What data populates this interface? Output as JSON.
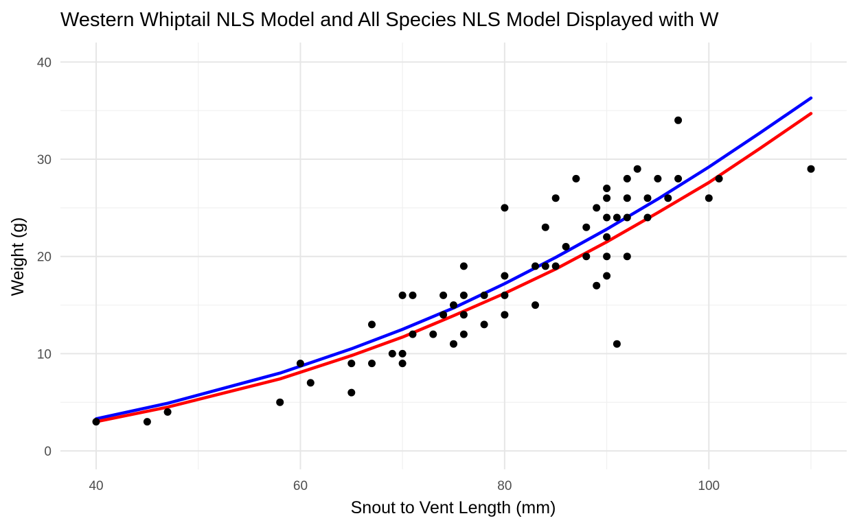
{
  "chart_data": {
    "type": "scatter",
    "title": "Western Whiptail NLS Model and All Species NLS Model Displayed with W",
    "xlabel": "Snout to Vent Length (mm)",
    "ylabel": "Weight (g)",
    "xlim": [
      36.5,
      113.5
    ],
    "ylim": [
      -1.9,
      42
    ],
    "x_ticks": [
      40,
      60,
      80,
      100
    ],
    "x_minor_ticks": [
      50,
      70,
      90,
      110
    ],
    "y_ticks": [
      0,
      10,
      20,
      30,
      40
    ],
    "y_minor_ticks": [
      5,
      15,
      25,
      35
    ],
    "grid": true,
    "legend": "none",
    "colors": {
      "points": "#000000",
      "blue_line": "#0000ff",
      "red_line": "#ff0000"
    },
    "points": [
      [
        40,
        3
      ],
      [
        45,
        3
      ],
      [
        47,
        4
      ],
      [
        58,
        5
      ],
      [
        60,
        9
      ],
      [
        61,
        7
      ],
      [
        65,
        9
      ],
      [
        65,
        6
      ],
      [
        67,
        13
      ],
      [
        67,
        9
      ],
      [
        69,
        10
      ],
      [
        70,
        16
      ],
      [
        70,
        10
      ],
      [
        70,
        9
      ],
      [
        71,
        16
      ],
      [
        71,
        12
      ],
      [
        73,
        12
      ],
      [
        74,
        16
      ],
      [
        74,
        14
      ],
      [
        75,
        15
      ],
      [
        75,
        11
      ],
      [
        76,
        19
      ],
      [
        76,
        16
      ],
      [
        76,
        14
      ],
      [
        76,
        12
      ],
      [
        78,
        16
      ],
      [
        78,
        13
      ],
      [
        80,
        25
      ],
      [
        80,
        18
      ],
      [
        80,
        16
      ],
      [
        80,
        14
      ],
      [
        83,
        19
      ],
      [
        83,
        15
      ],
      [
        84,
        23
      ],
      [
        84,
        19
      ],
      [
        85,
        26
      ],
      [
        85,
        19
      ],
      [
        86,
        21
      ],
      [
        87,
        28
      ],
      [
        88,
        23
      ],
      [
        88,
        20
      ],
      [
        89,
        25
      ],
      [
        89,
        17
      ],
      [
        90,
        27
      ],
      [
        90,
        26
      ],
      [
        90,
        24
      ],
      [
        90,
        22
      ],
      [
        90,
        20
      ],
      [
        90,
        18
      ],
      [
        91,
        24
      ],
      [
        91,
        11
      ],
      [
        92,
        28
      ],
      [
        92,
        26
      ],
      [
        92,
        24
      ],
      [
        92,
        20
      ],
      [
        93,
        29
      ],
      [
        94,
        26
      ],
      [
        94,
        24
      ],
      [
        95,
        28
      ],
      [
        96,
        26
      ],
      [
        97,
        34
      ],
      [
        97,
        28
      ],
      [
        100,
        26
      ],
      [
        101,
        28
      ],
      [
        110,
        29
      ]
    ],
    "series": [
      {
        "color": "blue",
        "x": [
          40,
          47,
          58,
          65,
          70,
          75,
          80,
          85,
          90,
          95,
          100,
          105,
          110
        ],
        "y": [
          3.3,
          4.9,
          8.0,
          10.5,
          12.5,
          14.7,
          17.2,
          19.9,
          22.8,
          25.9,
          29.2,
          32.7,
          36.3
        ]
      },
      {
        "color": "red",
        "x": [
          40,
          47,
          58,
          65,
          70,
          75,
          80,
          85,
          90,
          95,
          100,
          105,
          110
        ],
        "y": [
          3.0,
          4.5,
          7.4,
          9.8,
          11.7,
          13.9,
          16.2,
          18.7,
          21.5,
          24.5,
          27.6,
          31.1,
          34.7
        ]
      }
    ]
  }
}
